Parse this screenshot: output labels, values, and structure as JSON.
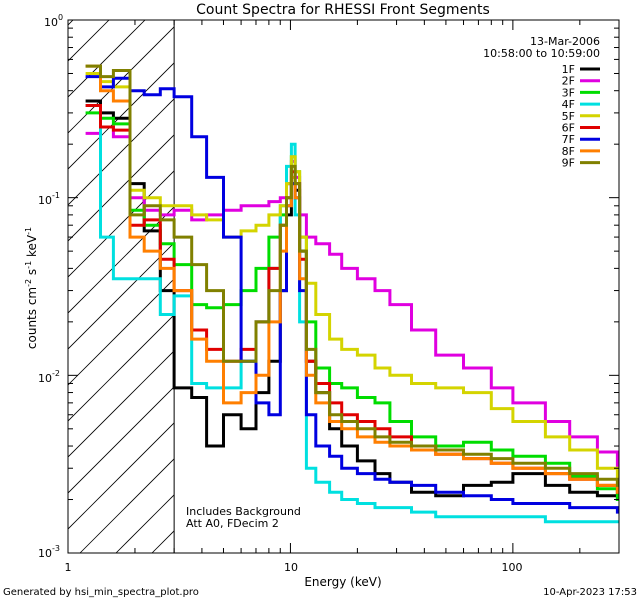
{
  "chart_data": {
    "type": "line",
    "title": "Count Spectra for RHESSI Front Segments",
    "xlabel": "Energy (keV)",
    "ylabel": "counts cm",
    "ylabel_sup1": "-2",
    "ylabel_mid": " s",
    "ylabel_sup2": "-1",
    "ylabel_end": " keV",
    "ylabel_sup3": "-1",
    "xscale": "log",
    "yscale": "log",
    "xlim": [
      1.0,
      300.0
    ],
    "ylim": [
      0.001,
      1.0
    ],
    "x_ticks": [
      {
        "value": 1,
        "label": "1"
      },
      {
        "value": 10,
        "label": "10"
      },
      {
        "value": 100,
        "label": "100"
      }
    ],
    "y_ticks": [
      {
        "value": 1,
        "label": "10",
        "exp": "0"
      },
      {
        "value": 0.1,
        "label": "10",
        "exp": "-1"
      },
      {
        "value": 0.01,
        "label": "10",
        "exp": "-2"
      },
      {
        "value": 0.001,
        "label": "10",
        "exp": "-3"
      }
    ],
    "date": "13-Mar-2006",
    "time_range": "10:58:00 to 10:59:00",
    "attenuator_note": "Att A0, FDecim 2",
    "background_note": "Includes Background",
    "excluded_below_kev": 3.0,
    "series": [
      {
        "name": "1F",
        "color": "#000000",
        "x": [
          1.2,
          1.4,
          1.6,
          1.9,
          2.2,
          2.6,
          3.0,
          3.6,
          4.2,
          5.0,
          6.0,
          7.0,
          8.0,
          9.0,
          9.6,
          10.1,
          10.5,
          11.0,
          11.8,
          13,
          15,
          17,
          20,
          24,
          28,
          35,
          45,
          60,
          80,
          100,
          140,
          180,
          240,
          295
        ],
        "y": [
          0.35,
          0.3,
          0.28,
          0.12,
          0.065,
          0.03,
          0.0085,
          0.0075,
          0.004,
          0.006,
          0.005,
          0.008,
          0.012,
          0.03,
          0.08,
          0.12,
          0.11,
          0.05,
          0.012,
          0.008,
          0.005,
          0.004,
          0.0033,
          0.0028,
          0.0025,
          0.0022,
          0.0021,
          0.0024,
          0.0025,
          0.0028,
          0.0024,
          0.0022,
          0.0021,
          0.002
        ]
      },
      {
        "name": "2F",
        "color": "#e000e0",
        "x": [
          1.2,
          1.4,
          1.6,
          1.9,
          2.2,
          2.6,
          3.0,
          3.6,
          4.2,
          5.0,
          6.0,
          7.0,
          8.0,
          9.0,
          9.6,
          10.1,
          10.5,
          11.0,
          11.8,
          13,
          15,
          17,
          20,
          24,
          28,
          35,
          45,
          60,
          80,
          100,
          140,
          180,
          240,
          295
        ],
        "y": [
          0.23,
          0.25,
          0.22,
          0.1,
          0.085,
          0.08,
          0.085,
          0.075,
          0.08,
          0.085,
          0.09,
          0.09,
          0.095,
          0.1,
          0.12,
          0.16,
          0.13,
          0.08,
          0.06,
          0.055,
          0.048,
          0.04,
          0.035,
          0.03,
          0.025,
          0.018,
          0.013,
          0.011,
          0.0085,
          0.007,
          0.0055,
          0.0045,
          0.0037,
          0.003
        ]
      },
      {
        "name": "3F",
        "color": "#00dd00",
        "x": [
          1.2,
          1.4,
          1.6,
          1.9,
          2.2,
          2.6,
          3.0,
          3.6,
          4.2,
          5.0,
          6.0,
          7.0,
          8.0,
          9.0,
          9.6,
          10.1,
          10.5,
          11.0,
          11.8,
          13,
          15,
          17,
          20,
          24,
          28,
          35,
          45,
          60,
          80,
          100,
          140,
          180,
          240,
          295
        ],
        "y": [
          0.3,
          0.28,
          0.26,
          0.085,
          0.07,
          0.055,
          0.042,
          0.025,
          0.024,
          0.025,
          0.03,
          0.04,
          0.06,
          0.08,
          0.12,
          0.17,
          0.14,
          0.06,
          0.02,
          0.011,
          0.009,
          0.0085,
          0.0075,
          0.007,
          0.0055,
          0.0045,
          0.004,
          0.0042,
          0.0038,
          0.0035,
          0.0032,
          0.0027,
          0.0023,
          0.002
        ]
      },
      {
        "name": "4F",
        "color": "#00e0e0",
        "x": [
          1.2,
          1.4,
          1.6,
          1.9,
          2.2,
          2.6,
          3.0,
          3.6,
          4.2,
          5.0,
          6.0,
          7.0,
          8.0,
          9.0,
          9.6,
          10.1,
          10.5,
          11.0,
          11.8,
          13,
          15,
          17,
          20,
          24,
          28,
          35,
          45,
          60,
          80,
          100,
          140,
          180,
          240,
          295
        ],
        "y": [
          0.33,
          0.06,
          0.035,
          0.035,
          0.035,
          0.022,
          0.028,
          0.009,
          0.0085,
          0.0085,
          0.012,
          0.02,
          0.04,
          0.09,
          0.15,
          0.2,
          0.08,
          0.02,
          0.003,
          0.0025,
          0.0022,
          0.002,
          0.0019,
          0.0018,
          0.0018,
          0.0017,
          0.0016,
          0.0016,
          0.0016,
          0.0016,
          0.0015,
          0.0015,
          0.0015,
          0.0015
        ]
      },
      {
        "name": "5F",
        "color": "#d4d400",
        "x": [
          1.2,
          1.4,
          1.6,
          1.9,
          2.2,
          2.6,
          3.0,
          3.6,
          4.2,
          5.0,
          6.0,
          7.0,
          8.0,
          9.0,
          9.6,
          10.1,
          10.5,
          11.0,
          11.8,
          13,
          15,
          17,
          20,
          24,
          28,
          35,
          45,
          60,
          80,
          100,
          140,
          180,
          240,
          295
        ],
        "y": [
          0.5,
          0.45,
          0.42,
          0.11,
          0.1,
          0.09,
          0.09,
          0.08,
          0.075,
          0.06,
          0.065,
          0.07,
          0.08,
          0.09,
          0.12,
          0.17,
          0.14,
          0.06,
          0.033,
          0.022,
          0.016,
          0.014,
          0.013,
          0.011,
          0.01,
          0.009,
          0.0085,
          0.008,
          0.0065,
          0.0055,
          0.0045,
          0.0038,
          0.003,
          0.0025
        ]
      },
      {
        "name": "6F",
        "color": "#e00000",
        "x": [
          1.2,
          1.4,
          1.6,
          1.9,
          2.2,
          2.6,
          3.0,
          3.6,
          4.2,
          5.0,
          6.0,
          7.0,
          8.0,
          9.0,
          9.6,
          10.1,
          10.5,
          11.0,
          11.8,
          13,
          15,
          17,
          20,
          24,
          28,
          35,
          45,
          60,
          80,
          100,
          140,
          180,
          240,
          295
        ],
        "y": [
          0.33,
          0.25,
          0.24,
          0.07,
          0.075,
          0.045,
          0.03,
          0.018,
          0.014,
          0.012,
          0.014,
          0.02,
          0.04,
          0.07,
          0.1,
          0.14,
          0.12,
          0.045,
          0.012,
          0.009,
          0.007,
          0.006,
          0.0055,
          0.005,
          0.0045,
          0.004,
          0.0036,
          0.0034,
          0.0032,
          0.003,
          0.0028,
          0.0026,
          0.0024,
          0.0022
        ]
      },
      {
        "name": "7F",
        "color": "#0000e0",
        "x": [
          1.2,
          1.4,
          1.6,
          1.9,
          2.2,
          2.6,
          3.0,
          3.6,
          4.2,
          5.0,
          6.0,
          7.0,
          8.0,
          9.0,
          9.6,
          10.1,
          10.5,
          11.0,
          11.8,
          13,
          15,
          17,
          20,
          24,
          28,
          35,
          45,
          60,
          80,
          100,
          140,
          180,
          240,
          295
        ],
        "y": [
          0.48,
          0.42,
          0.47,
          0.4,
          0.38,
          0.41,
          0.37,
          0.22,
          0.13,
          0.06,
          0.012,
          0.007,
          0.006,
          0.03,
          0.09,
          0.12,
          0.1,
          0.03,
          0.006,
          0.004,
          0.0035,
          0.003,
          0.0028,
          0.0026,
          0.0025,
          0.0024,
          0.0022,
          0.0021,
          0.002,
          0.0019,
          0.0019,
          0.0018,
          0.0018,
          0.0017
        ]
      },
      {
        "name": "8F",
        "color": "#ff7f00",
        "x": [
          1.2,
          1.4,
          1.6,
          1.9,
          2.2,
          2.6,
          3.0,
          3.6,
          4.2,
          5.0,
          6.0,
          7.0,
          8.0,
          9.0,
          9.6,
          10.1,
          10.5,
          11.0,
          11.8,
          13,
          15,
          17,
          20,
          24,
          28,
          35,
          45,
          60,
          80,
          100,
          140,
          180,
          240,
          295
        ],
        "y": [
          0.55,
          0.4,
          0.35,
          0.06,
          0.05,
          0.04,
          0.03,
          0.016,
          0.012,
          0.007,
          0.008,
          0.01,
          0.02,
          0.05,
          0.09,
          0.13,
          0.1,
          0.035,
          0.01,
          0.007,
          0.0055,
          0.005,
          0.0045,
          0.0042,
          0.004,
          0.0038,
          0.0036,
          0.0034,
          0.0032,
          0.003,
          0.0028,
          0.0026,
          0.0024,
          0.0022
        ]
      },
      {
        "name": "9F",
        "color": "#808000",
        "x": [
          1.2,
          1.4,
          1.6,
          1.9,
          2.2,
          2.6,
          3.0,
          3.6,
          4.2,
          5.0,
          6.0,
          7.0,
          8.0,
          9.0,
          9.6,
          10.1,
          10.5,
          11.0,
          11.8,
          13,
          15,
          17,
          20,
          24,
          28,
          35,
          45,
          60,
          80,
          100,
          140,
          180,
          240,
          295
        ],
        "y": [
          0.55,
          0.48,
          0.52,
          0.08,
          0.09,
          0.075,
          0.06,
          0.042,
          0.03,
          0.012,
          0.012,
          0.02,
          0.03,
          0.07,
          0.1,
          0.15,
          0.12,
          0.05,
          0.014,
          0.008,
          0.006,
          0.0055,
          0.005,
          0.0045,
          0.0042,
          0.004,
          0.0038,
          0.0036,
          0.0034,
          0.0032,
          0.003,
          0.0028,
          0.0026,
          0.0024
        ]
      }
    ]
  },
  "footer": {
    "generated_by": "Generated by hsi_min_spectra_plot.pro",
    "timestamp": "10-Apr-2023 17:53"
  }
}
